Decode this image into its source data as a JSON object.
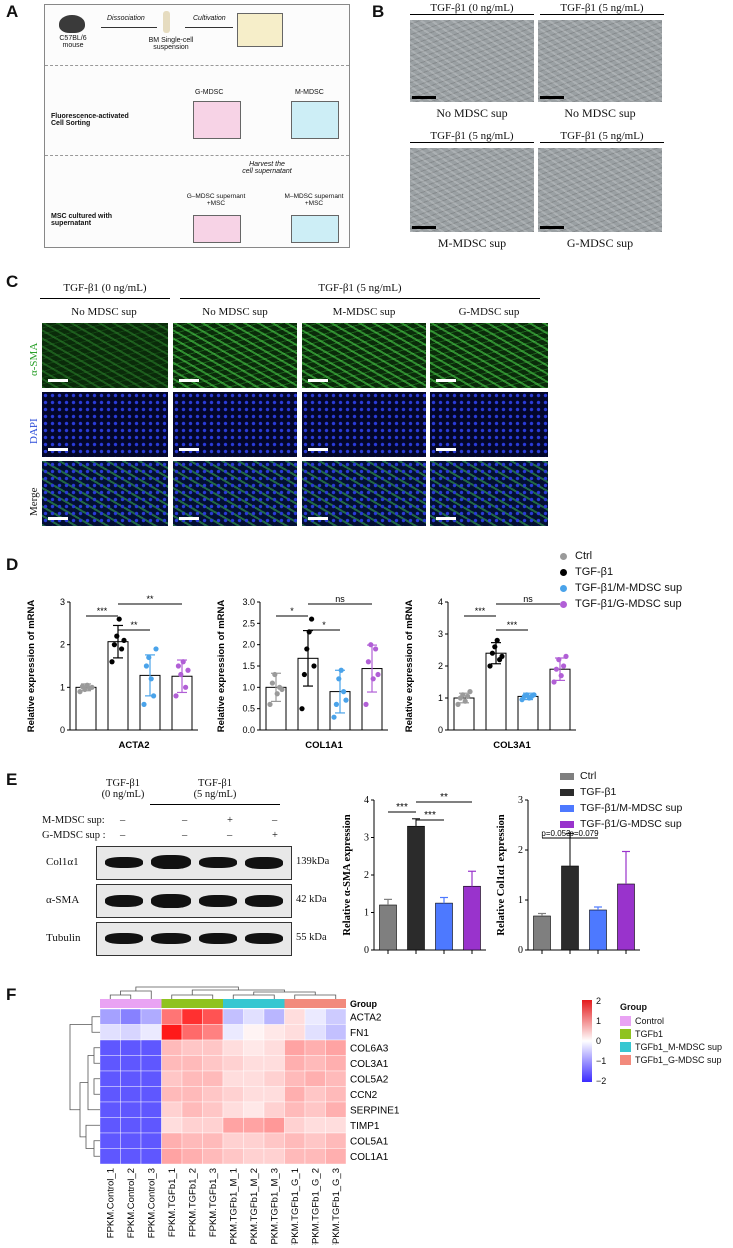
{
  "panels": {
    "A": "A",
    "B": "B",
    "C": "C",
    "D": "D",
    "E": "E",
    "F": "F"
  },
  "panelA": {
    "dissociation": "Dissociation",
    "cultivation": "Cultivation",
    "mouse": "C57BL/6\nmouse",
    "bm": "BM Single-cell\nsuspension",
    "facs": "Fluorescence-activated\nCell Sorting",
    "gmdsc": "G-MDSC",
    "mmdsc": "M-MDSC",
    "harvest": "Harvest the\ncell supernatant",
    "g_sup": "G–MDSC supernant\n+MSC",
    "m_sup": "M–MDSC supernant\n+MSC",
    "msc": "MSC cultured with\nsupernatant"
  },
  "panelB": {
    "tl": "TGF-β1 (0 ng/mL)",
    "tr": "TGF-β1 (5 ng/mL)",
    "bl": "TGF-β1 (5 ng/mL)",
    "br": "TGF-β1 (5 ng/mL)",
    "cap_tl": "No MDSC sup",
    "cap_tr": "No MDSC sup",
    "cap_bl": "M-MDSC sup",
    "cap_br": "G-MDSC sup"
  },
  "panelC": {
    "h1": "TGF-β1 (0 ng/mL)",
    "h2": "TGF-β1 (5 ng/mL)",
    "cols": [
      "No MDSC sup",
      "No MDSC sup",
      "M-MDSC sup",
      "G-MDSC sup"
    ],
    "rows": [
      "α-SMA",
      "DAPI",
      "Merge"
    ]
  },
  "legendD": [
    "Ctrl",
    "TGF-β1",
    "TGF-β1/M-MDSC sup",
    "TGF-β1/G-MDSC sup"
  ],
  "colorsD": [
    "#9a9a9a",
    "#000000",
    "#4aa3ea",
    "#b15fd6"
  ],
  "legendE": [
    "Ctrl",
    "TGF-β1",
    "TGF-β1/M-MDSC sup",
    "TGF-β1/G-MDSC sup"
  ],
  "colorsE": [
    "#7f7f7f",
    "#2b2b2b",
    "#4d79ff",
    "#9933cc"
  ],
  "panelE": {
    "h0": "TGF-β1\n(0 ng/mL)",
    "h1": "TGF-β1\n(5 ng/mL)",
    "m_row": "M-MDSC sup:",
    "g_row": "G-MDSC sup :",
    "m_signs": [
      "–",
      "–",
      "+",
      "–"
    ],
    "g_signs": [
      "–",
      "–",
      "–",
      "+"
    ],
    "blots": [
      {
        "name": "Col1α1",
        "kda": "139kDa"
      },
      {
        "name": "α-SMA",
        "kda": "42 kDa"
      },
      {
        "name": "Tubulin",
        "kda": "55 kDa"
      }
    ]
  },
  "chart_data": [
    {
      "type": "bar",
      "ylabel": "Relative expression of mRNA",
      "xlabel": "ACTA2",
      "ylim": [
        0,
        3
      ],
      "yticks": [
        "0",
        "1",
        "2",
        "3"
      ],
      "series": [
        {
          "name": "Ctrl",
          "values": [
            1.0
          ]
        },
        {
          "name": "TGF-β1",
          "values": [
            2.07
          ]
        },
        {
          "name": "TGF-β1/M-MDSC sup",
          "values": [
            1.28
          ]
        },
        {
          "name": "TGF-β1/G-MDSC sup",
          "values": [
            1.26
          ]
        }
      ],
      "sd": [
        0.08,
        0.38,
        0.48,
        0.38
      ],
      "points": [
        [
          0.9,
          1.02,
          0.95,
          1.05,
          0.98,
          1.0
        ],
        [
          1.6,
          2.0,
          2.2,
          2.6,
          1.9,
          2.1
        ],
        [
          0.6,
          1.5,
          1.7,
          1.2,
          0.8,
          1.9
        ],
        [
          0.8,
          1.5,
          1.3,
          1.6,
          1.0,
          1.4
        ]
      ],
      "sig": [
        {
          "a": 0,
          "b": 1,
          "label": "***"
        },
        {
          "a": 1,
          "b": 2,
          "label": "**"
        },
        {
          "a": 1,
          "b": 3,
          "label": "**"
        }
      ]
    },
    {
      "type": "bar",
      "ylabel": "Relative expression of mRNA",
      "xlabel": "COL1A1",
      "ylim": [
        0,
        3
      ],
      "yticks": [
        "0.0",
        "0.5",
        "1.0",
        "1.5",
        "2.0",
        "2.5",
        "3.0"
      ],
      "series": [
        {
          "name": "Ctrl",
          "values": [
            1.0
          ]
        },
        {
          "name": "TGF-β1",
          "values": [
            1.68
          ]
        },
        {
          "name": "TGF-β1/M-MDSC sup",
          "values": [
            0.9
          ]
        },
        {
          "name": "TGF-β1/G-MDSC sup",
          "values": [
            1.44
          ]
        }
      ],
      "sd": [
        0.33,
        0.65,
        0.5,
        0.55
      ],
      "points": [
        [
          0.6,
          1.1,
          1.3,
          0.85,
          1.0,
          0.95
        ],
        [
          0.5,
          1.3,
          1.9,
          2.3,
          2.6,
          1.5
        ],
        [
          0.3,
          0.6,
          1.2,
          1.4,
          0.9,
          0.7
        ],
        [
          0.6,
          1.6,
          2.0,
          1.2,
          1.9,
          1.3
        ]
      ],
      "sig": [
        {
          "a": 0,
          "b": 1,
          "label": "*"
        },
        {
          "a": 1,
          "b": 2,
          "label": "*"
        },
        {
          "a": 1,
          "b": 3,
          "label": "ns"
        }
      ]
    },
    {
      "type": "bar",
      "ylabel": "Relative expression of mRNA",
      "xlabel": "COL3A1",
      "ylim": [
        0,
        4
      ],
      "yticks": [
        "0",
        "1",
        "2",
        "3",
        "4"
      ],
      "series": [
        {
          "name": "Ctrl",
          "values": [
            1.0
          ]
        },
        {
          "name": "TGF-β1",
          "values": [
            2.4
          ]
        },
        {
          "name": "TGF-β1/M-MDSC sup",
          "values": [
            1.05
          ]
        },
        {
          "name": "TGF-β1/G-MDSC sup",
          "values": [
            1.9
          ]
        }
      ],
      "sd": [
        0.15,
        0.33,
        0.1,
        0.35
      ],
      "points": [
        [
          0.8,
          1.0,
          1.1,
          0.9,
          1.05,
          1.2
        ],
        [
          2.0,
          2.4,
          2.6,
          2.8,
          2.2,
          2.3
        ],
        [
          0.95,
          1.05,
          1.1,
          1.0,
          1.05,
          1.1
        ],
        [
          1.5,
          1.9,
          2.2,
          1.7,
          2.0,
          2.3
        ]
      ],
      "sig": [
        {
          "a": 0,
          "b": 1,
          "label": "***"
        },
        {
          "a": 1,
          "b": 2,
          "label": "***"
        },
        {
          "a": 1,
          "b": 3,
          "label": "ns"
        }
      ]
    },
    {
      "type": "bar",
      "ylabel": "Relative α-SMA expression",
      "xlabel": "",
      "ylim": [
        0,
        4
      ],
      "yticks": [
        "0",
        "1",
        "2",
        "3",
        "4"
      ],
      "series": [
        {
          "name": "Ctrl",
          "values": [
            1.2
          ]
        },
        {
          "name": "TGF-β1",
          "values": [
            3.3
          ]
        },
        {
          "name": "TGF-β1/M-MDSC sup",
          "values": [
            1.25
          ]
        },
        {
          "name": "TGF-β1/G-MDSC sup",
          "values": [
            1.7
          ]
        }
      ],
      "sd": [
        0.15,
        0.2,
        0.15,
        0.4
      ],
      "sig": [
        {
          "a": 0,
          "b": 1,
          "label": "***"
        },
        {
          "a": 1,
          "b": 2,
          "label": "***"
        },
        {
          "a": 1,
          "b": 3,
          "label": "**"
        }
      ]
    },
    {
      "type": "bar",
      "ylabel": "Relative Col1α1 expression",
      "xlabel": "",
      "ylim": [
        0,
        3
      ],
      "yticks": [
        "0",
        "1",
        "2",
        "3"
      ],
      "series": [
        {
          "name": "Ctrl",
          "values": [
            0.68
          ]
        },
        {
          "name": "TGF-β1",
          "values": [
            1.68
          ]
        },
        {
          "name": "TGF-β1/M-MDSC sup",
          "values": [
            0.8
          ]
        },
        {
          "name": "TGF-β1/G-MDSC sup",
          "values": [
            1.32
          ]
        }
      ],
      "sd": [
        0.05,
        0.65,
        0.06,
        0.65
      ],
      "sig": [
        {
          "a": 0,
          "b": 1,
          "label": "p=0.053"
        },
        {
          "a": 1,
          "b": 2,
          "label": "p=0.079"
        }
      ]
    },
    {
      "type": "heatmap",
      "title": "",
      "rows": [
        "ACTA2",
        "FN1",
        "COL6A3",
        "COL3A1",
        "COL5A2",
        "CCN2",
        "SERPINE1",
        "TIMP1",
        "COL5A1",
        "COL1A1"
      ],
      "columns": [
        "FPKM.Control_1",
        "FPKM.Control_2",
        "FPKM.Control_3",
        "FPKM.TGFb1_1",
        "FPKM.TGFb1_2",
        "FPKM.TGFb1_3",
        "FPKM.TGFb1_M_1",
        "FPKM.TGFb1_M_2",
        "FPKM.TGFb1_M_3",
        "FPKM.TGFb1_G_1",
        "FPKM.TGFb1_G_2",
        "FPKM.TGFb1_G_3"
      ],
      "groups": [
        "Control",
        "Control",
        "Control",
        "TGFb1",
        "TGFb1",
        "TGFb1",
        "TGFb1_M-MDSC sup",
        "TGFb1_M-MDSC sup",
        "TGFb1_M-MDSC sup",
        "TGFb1_G-MDSC sup",
        "TGFb1_G-MDSC sup",
        "TGFb1_G-MDSC sup"
      ],
      "values": [
        [
          -0.9,
          -1.2,
          -0.8,
          1.2,
          1.8,
          1.5,
          -0.6,
          -0.3,
          -0.7,
          0.3,
          -0.2,
          -0.5
        ],
        [
          -0.3,
          -0.4,
          -0.2,
          2.0,
          1.3,
          1.1,
          -0.2,
          0.1,
          0.2,
          0.3,
          -0.3,
          -0.6
        ],
        [
          -1.6,
          -1.6,
          -1.6,
          0.6,
          0.5,
          0.5,
          0.3,
          0.2,
          0.3,
          0.8,
          0.7,
          0.8
        ],
        [
          -1.6,
          -1.6,
          -1.6,
          0.6,
          0.6,
          0.5,
          0.4,
          0.3,
          0.3,
          0.7,
          0.6,
          0.7
        ],
        [
          -1.6,
          -1.6,
          -1.6,
          0.5,
          0.6,
          0.6,
          0.3,
          0.3,
          0.4,
          0.6,
          0.7,
          0.6
        ],
        [
          -1.6,
          -1.6,
          -1.6,
          0.6,
          0.6,
          0.5,
          0.4,
          0.3,
          0.3,
          0.7,
          0.5,
          0.6
        ],
        [
          -1.6,
          -1.6,
          -1.6,
          0.4,
          0.6,
          0.5,
          0.3,
          0.2,
          0.4,
          0.6,
          0.5,
          0.7
        ],
        [
          -1.6,
          -1.6,
          -1.6,
          0.3,
          0.4,
          0.4,
          0.8,
          0.8,
          0.9,
          0.4,
          0.3,
          0.3
        ],
        [
          -1.6,
          -1.6,
          -1.6,
          0.7,
          0.6,
          0.6,
          0.4,
          0.4,
          0.5,
          0.6,
          0.5,
          0.6
        ],
        [
          -1.6,
          -1.6,
          -1.6,
          0.8,
          0.7,
          0.6,
          0.5,
          0.4,
          0.4,
          0.6,
          0.6,
          0.7
        ]
      ],
      "legend_title": "Group",
      "legend": [
        "Control",
        "TGFb1",
        "TGFb1_M-MDSC sup",
        "TGFb1_G-MDSC sup"
      ],
      "group_colors": [
        "#e9a3f3",
        "#8fc31f",
        "#36c7d1",
        "#f28a7c"
      ],
      "scale_ticks": [
        "2",
        "1",
        "0",
        "−1",
        "−2"
      ],
      "group_header": "Group"
    }
  ]
}
